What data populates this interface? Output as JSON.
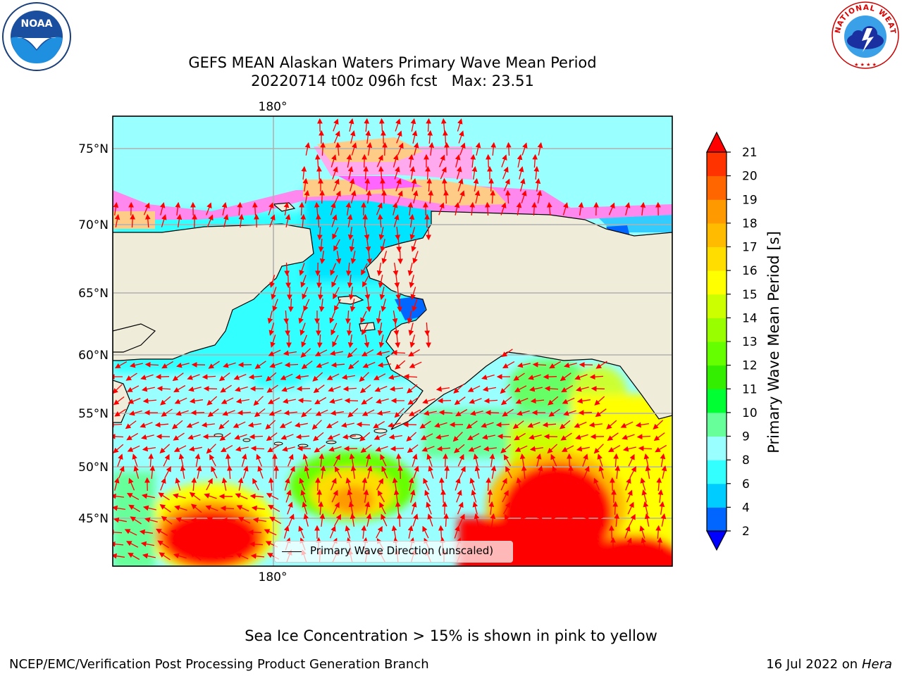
{
  "title_line1": "GEFS MEAN Alaskan Waters Primary Wave Mean Period",
  "title_line2": "20220714 t00z 096h fcst   Max: 23.51",
  "footnote": "Sea Ice Concentration > 15% is shown in pink to yellow",
  "footer_left": "NCEP/EMC/Verification Post Processing Product Generation Branch",
  "footer_date": "16 Jul 2022 on ",
  "footer_machine": "Hera",
  "legend_label": "Primary Wave Direction (unscaled)",
  "logos": {
    "noaa": "NOAA",
    "nws": "NATIONAL WEATHER SERVICE"
  },
  "map": {
    "lat_labels": [
      "75°N",
      "70°N",
      "65°N",
      "60°N",
      "55°N",
      "50°N",
      "45°N"
    ],
    "lon_label_top": "180°",
    "lon_label_bottom": "180°",
    "land_color": "#efecd9",
    "arrow_color": "#ff0000"
  },
  "colorbar": {
    "label": "Primary Wave Mean Period [s]",
    "ticks": [
      "2",
      "4",
      "6",
      "8",
      "9",
      "10",
      "11",
      "12",
      "13",
      "14",
      "15",
      "16",
      "17",
      "18",
      "19",
      "20",
      "21"
    ],
    "colors": [
      "#0066ff",
      "#00ccff",
      "#33ffff",
      "#99ffff",
      "#66ff99",
      "#00ff33",
      "#33ee00",
      "#66ff00",
      "#99ff00",
      "#ccff00",
      "#ffff00",
      "#ffdd00",
      "#ffbb00",
      "#ff9900",
      "#ff6600",
      "#ff3300"
    ],
    "under_color": "#0000ff",
    "over_color": "#ff0000"
  }
}
